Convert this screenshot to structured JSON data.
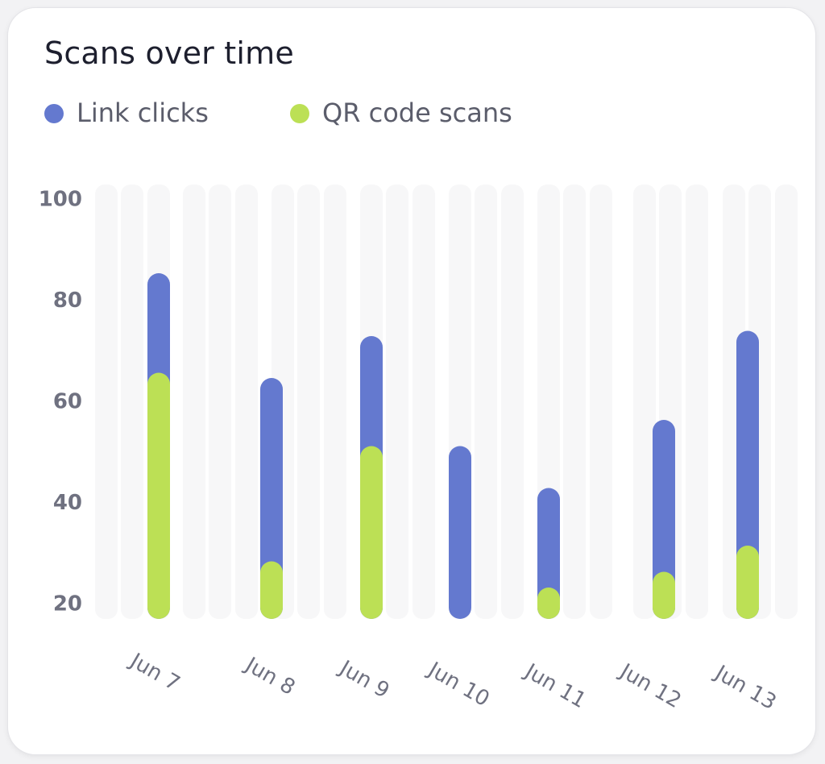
{
  "card": {
    "title": "Scans over time"
  },
  "colors": {
    "link_clicks": "#6479cf",
    "qr_code_scans": "#bce055",
    "track": "#f7f7f8"
  },
  "legend": [
    {
      "label": "Link clicks",
      "color": "#6479cf"
    },
    {
      "label": "QR code scans",
      "color": "#bce055"
    }
  ],
  "chart_data": {
    "type": "bar",
    "stacked": false,
    "overlay": true,
    "title": "Scans over time",
    "xlabel": "",
    "ylabel": "",
    "ylim": [
      20,
      100
    ],
    "yticks": [
      20,
      40,
      60,
      80,
      100
    ],
    "categories": [
      "Jun 7",
      "Jun 8",
      "Jun 9",
      "Jun 10",
      "Jun 11",
      "Jun 12",
      "Jun 13"
    ],
    "series": [
      {
        "name": "Link clicks",
        "color": "#6479cf",
        "values": [
          86,
          66,
          74,
          53,
          45,
          58,
          75
        ]
      },
      {
        "name": "QR code scans",
        "color": "#bce055",
        "values": [
          67,
          31,
          53,
          null,
          26,
          29,
          34
        ]
      }
    ],
    "legend_position": "top-left",
    "grid": false
  }
}
